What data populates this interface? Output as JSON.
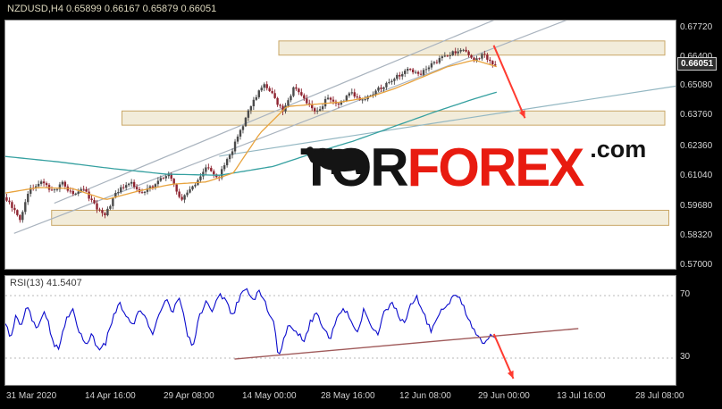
{
  "terminal": {
    "symbol_line": "NZDUSD,H4 0.65899 0.66167 0.65879 0.66051",
    "current_price": "0.66051"
  },
  "watermark": {
    "part1": "TOR",
    "part2": "FOREX",
    "part3": ".com"
  },
  "rsi": {
    "label": "RSI(13) 41.5407",
    "levels": [
      "70",
      "30"
    ]
  },
  "price_axis_labels": [
    "0.67720",
    "0.66400",
    "0.65080",
    "0.63760",
    "0.62360",
    "0.61040",
    "0.59680",
    "0.58320",
    "0.57000"
  ],
  "time_axis_labels": [
    "31 Mar 2020",
    "14 Apr 16:00",
    "29 Apr 08:00",
    "14 May 00:00",
    "28 May 16:00",
    "12 Jun 08:00",
    "29 Jun 00:00",
    "13 Jul 16:00",
    "28 Jul 08:00"
  ],
  "colors": {
    "zone_fill": "#f2ecda",
    "zone_border": "#c9a767",
    "candle_up": "#4a4a4a",
    "candle_down": "#8e2330",
    "ma_fast": "#e8a33d",
    "ma_slow": "#35a0a0",
    "trendline": "#a9b3be",
    "trendline_alt": "#93b7c2",
    "rsi_line": "#0a0acc",
    "rsi_level": "#b8b8b8",
    "rsi_trend": "#a05a5a",
    "arrow": "#ff3b30",
    "axis_text": "#d6d6d6"
  },
  "chart_data": [
    {
      "type": "candlestick",
      "title": "NZDUSD,H4",
      "timeframe": "H4",
      "quote": {
        "open": 0.65899,
        "high": 0.66167,
        "low": 0.65879,
        "close": 0.66051
      },
      "ylim": [
        0.5688,
        0.6808
      ],
      "y_ticks": [
        0.6772,
        0.664,
        0.6508,
        0.6376,
        0.6236,
        0.6104,
        0.5968,
        0.5832,
        0.57
      ],
      "x_tick_labels": [
        "31 Mar 2020",
        "14 Apr 16:00",
        "29 Apr 08:00",
        "14 May 00:00",
        "28 May 16:00",
        "12 Jun 08:00",
        "29 Jun 00:00",
        "13 Jul 16:00",
        "28 Jul 08:00"
      ],
      "last_x": 0.733,
      "price_path": [
        [
          0.0,
          0.601
        ],
        [
          0.012,
          0.596
        ],
        [
          0.022,
          0.5905
        ],
        [
          0.035,
          0.6045
        ],
        [
          0.055,
          0.609
        ],
        [
          0.07,
          0.6035
        ],
        [
          0.085,
          0.6075
        ],
        [
          0.1,
          0.602
        ],
        [
          0.115,
          0.606
        ],
        [
          0.13,
          0.5985
        ],
        [
          0.148,
          0.5925
        ],
        [
          0.165,
          0.603
        ],
        [
          0.185,
          0.608
        ],
        [
          0.205,
          0.6025
        ],
        [
          0.225,
          0.6075
        ],
        [
          0.245,
          0.6115
        ],
        [
          0.262,
          0.5995
        ],
        [
          0.28,
          0.606
        ],
        [
          0.3,
          0.6145
        ],
        [
          0.318,
          0.61
        ],
        [
          0.335,
          0.62
        ],
        [
          0.352,
          0.632
        ],
        [
          0.368,
          0.644
        ],
        [
          0.385,
          0.652
        ],
        [
          0.4,
          0.6465
        ],
        [
          0.415,
          0.6395
        ],
        [
          0.432,
          0.6515
        ],
        [
          0.448,
          0.644
        ],
        [
          0.465,
          0.639
        ],
        [
          0.48,
          0.646
        ],
        [
          0.497,
          0.6425
        ],
        [
          0.515,
          0.648
        ],
        [
          0.532,
          0.645
        ],
        [
          0.55,
          0.6485
        ],
        [
          0.568,
          0.652
        ],
        [
          0.585,
          0.6555
        ],
        [
          0.602,
          0.659
        ],
        [
          0.618,
          0.656
        ],
        [
          0.634,
          0.6605
        ],
        [
          0.65,
          0.664
        ],
        [
          0.668,
          0.6665
        ],
        [
          0.685,
          0.668
        ],
        [
          0.7,
          0.663
        ],
        [
          0.714,
          0.6655
        ],
        [
          0.724,
          0.6625
        ],
        [
          0.733,
          0.6605
        ]
      ],
      "ma_fast_path": [
        [
          0.0,
          0.603
        ],
        [
          0.05,
          0.6055
        ],
        [
          0.1,
          0.605
        ],
        [
          0.15,
          0.6
        ],
        [
          0.2,
          0.604
        ],
        [
          0.25,
          0.607
        ],
        [
          0.3,
          0.608
        ],
        [
          0.34,
          0.612
        ],
        [
          0.38,
          0.63
        ],
        [
          0.42,
          0.642
        ],
        [
          0.46,
          0.643
        ],
        [
          0.5,
          0.644
        ],
        [
          0.54,
          0.646
        ],
        [
          0.58,
          0.65
        ],
        [
          0.62,
          0.655
        ],
        [
          0.66,
          0.66
        ],
        [
          0.7,
          0.663
        ],
        [
          0.733,
          0.66
        ]
      ],
      "ma_slow_path": [
        [
          0.0,
          0.6195
        ],
        [
          0.08,
          0.617
        ],
        [
          0.16,
          0.614
        ],
        [
          0.24,
          0.6115
        ],
        [
          0.32,
          0.611
        ],
        [
          0.4,
          0.615
        ],
        [
          0.46,
          0.621
        ],
        [
          0.52,
          0.6265
        ],
        [
          0.58,
          0.633
        ],
        [
          0.64,
          0.6395
        ],
        [
          0.7,
          0.6455
        ],
        [
          0.733,
          0.6485
        ]
      ],
      "zones": [
        {
          "x1": 0.408,
          "x2": 0.984,
          "p_top": 0.6716,
          "p_bottom": 0.6652
        },
        {
          "x1": 0.174,
          "x2": 0.984,
          "p_top": 0.64,
          "p_bottom": 0.6336
        },
        {
          "x1": 0.069,
          "x2": 0.99,
          "p_top": 0.5952,
          "p_bottom": 0.5884
        }
      ],
      "trendlines": [
        {
          "x1": 0.073,
          "p1": 0.5984,
          "x2": 0.791,
          "p2": 0.6888
        },
        {
          "x1": 0.013,
          "p1": 0.5848,
          "x2": 0.911,
          "p2": 0.6896
        },
        {
          "x1": 0.319,
          "p1": 0.6196,
          "x2": 1.0,
          "p2": 0.6512,
          "alt": true
        }
      ],
      "arrow": {
        "x1": 0.7287,
        "p1": 0.6696,
        "x2": 0.7753,
        "p2": 0.6368
      }
    },
    {
      "type": "line",
      "title": "RSI(13)",
      "value": 41.5407,
      "levels": [
        70,
        30
      ],
      "path": [
        [
          0.0,
          52
        ],
        [
          0.008,
          44
        ],
        [
          0.016,
          58
        ],
        [
          0.024,
          50
        ],
        [
          0.032,
          63
        ],
        [
          0.04,
          55
        ],
        [
          0.048,
          47
        ],
        [
          0.056,
          60
        ],
        [
          0.064,
          52
        ],
        [
          0.072,
          40
        ],
        [
          0.08,
          35
        ],
        [
          0.09,
          55
        ],
        [
          0.1,
          62
        ],
        [
          0.11,
          48
        ],
        [
          0.12,
          38
        ],
        [
          0.13,
          45
        ],
        [
          0.14,
          33
        ],
        [
          0.15,
          40
        ],
        [
          0.16,
          55
        ],
        [
          0.17,
          65
        ],
        [
          0.18,
          58
        ],
        [
          0.19,
          50
        ],
        [
          0.2,
          63
        ],
        [
          0.21,
          55
        ],
        [
          0.22,
          44
        ],
        [
          0.23,
          58
        ],
        [
          0.24,
          67
        ],
        [
          0.25,
          60
        ],
        [
          0.26,
          70
        ],
        [
          0.27,
          48
        ],
        [
          0.28,
          36
        ],
        [
          0.29,
          58
        ],
        [
          0.3,
          66
        ],
        [
          0.31,
          60
        ],
        [
          0.32,
          72
        ],
        [
          0.33,
          65
        ],
        [
          0.34,
          57
        ],
        [
          0.35,
          70
        ],
        [
          0.36,
          75
        ],
        [
          0.37,
          68
        ],
        [
          0.38,
          73
        ],
        [
          0.39,
          62
        ],
        [
          0.4,
          55
        ],
        [
          0.408,
          30
        ],
        [
          0.416,
          44
        ],
        [
          0.425,
          52
        ],
        [
          0.435,
          47
        ],
        [
          0.445,
          40
        ],
        [
          0.455,
          53
        ],
        [
          0.465,
          59
        ],
        [
          0.475,
          50
        ],
        [
          0.485,
          43
        ],
        [
          0.495,
          57
        ],
        [
          0.505,
          62
        ],
        [
          0.515,
          54
        ],
        [
          0.525,
          47
        ],
        [
          0.535,
          61
        ],
        [
          0.545,
          52
        ],
        [
          0.555,
          44
        ],
        [
          0.565,
          58
        ],
        [
          0.575,
          66
        ],
        [
          0.585,
          59
        ],
        [
          0.595,
          51
        ],
        [
          0.605,
          64
        ],
        [
          0.615,
          69
        ],
        [
          0.625,
          57
        ],
        [
          0.635,
          47
        ],
        [
          0.645,
          56
        ],
        [
          0.655,
          63
        ],
        [
          0.665,
          67
        ],
        [
          0.675,
          71
        ],
        [
          0.685,
          62
        ],
        [
          0.695,
          50
        ],
        [
          0.705,
          44
        ],
        [
          0.715,
          40
        ],
        [
          0.722,
          45
        ],
        [
          0.733,
          41.5
        ]
      ],
      "trendline": {
        "x1": 0.342,
        "v1": 29.4,
        "x2": 0.855,
        "v2": 48.9
      },
      "arrow": {
        "x1": 0.729,
        "v1": 45.4,
        "x2": 0.758,
        "v2": 16.9
      }
    }
  ]
}
